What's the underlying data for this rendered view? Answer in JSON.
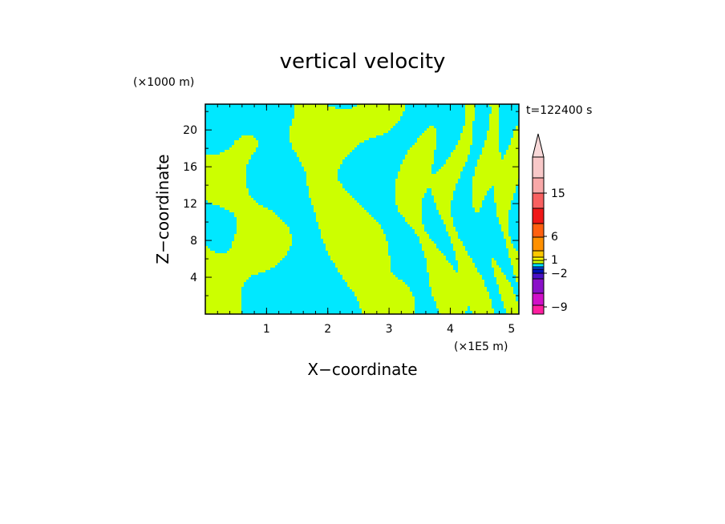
{
  "chart_data": {
    "type": "heatmap",
    "title": "vertical velocity",
    "xlabel": "X−coordinate",
    "ylabel": "Z−coordinate",
    "x_unit": "(×1E5 m)",
    "y_unit": "(×1000 m)",
    "time_label": "t=122400 s",
    "xlim": [
      0,
      5.12
    ],
    "ylim": [
      0,
      22.8
    ],
    "x_ticks": [
      {
        "value": 1,
        "label": "1"
      },
      {
        "value": 2,
        "label": "2"
      },
      {
        "value": 3,
        "label": "3"
      },
      {
        "value": 4,
        "label": "4"
      },
      {
        "value": 5,
        "label": "5"
      }
    ],
    "y_ticks": [
      {
        "value": 4,
        "label": "4"
      },
      {
        "value": 8,
        "label": "8"
      },
      {
        "value": 12,
        "label": "12"
      },
      {
        "value": 16,
        "label": "16"
      },
      {
        "value": 20,
        "label": "20"
      }
    ],
    "colors": {
      "negative": "#00e8ff",
      "positive": "#ccff00"
    },
    "colorbar": {
      "levels": [
        -9,
        -2,
        1,
        6,
        15
      ],
      "tick_labels": [
        "15",
        "6",
        "1",
        "−2",
        "−9"
      ],
      "segments": [
        {
          "color": "#ff1ea0"
        },
        {
          "color": "#d010c8"
        },
        {
          "color": "#8a10c8"
        },
        {
          "color": "#4a10c8"
        },
        {
          "color": "#0010b8"
        },
        {
          "color": "#0050ff"
        },
        {
          "color": "#00e8ff"
        },
        {
          "color": "#ccff00"
        },
        {
          "color": "#ffff00"
        },
        {
          "color": "#ffc800"
        },
        {
          "color": "#ff9000"
        },
        {
          "color": "#ff6010"
        },
        {
          "color": "#f01818"
        },
        {
          "color": "#f86060"
        },
        {
          "color": "#f8a8a8"
        },
        {
          "color": "#f8c8c8"
        }
      ]
    }
  }
}
